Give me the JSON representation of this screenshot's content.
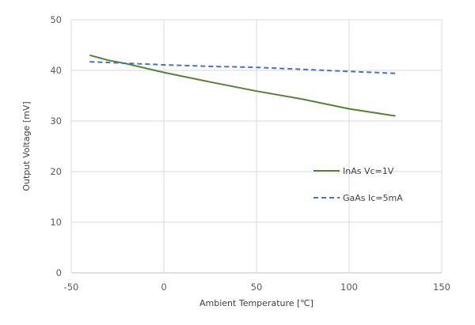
{
  "chart_data": {
    "type": "line",
    "title": "",
    "xlabel": "Ambient Temperature [℃]",
    "ylabel": "Output Voltage [mV]",
    "xlim": [
      -50,
      150
    ],
    "ylim": [
      0,
      50
    ],
    "xticks": [
      -50,
      0,
      50,
      100,
      150
    ],
    "yticks": [
      0,
      10,
      20,
      30,
      40,
      50
    ],
    "xtick_labels": [
      "-50",
      "0",
      "50",
      "100",
      "150"
    ],
    "ytick_labels": [
      "0",
      "10",
      "20",
      "30",
      "40",
      "50"
    ],
    "grid": true,
    "legend_position": "right",
    "series": [
      {
        "name": "InAs Vc=1V",
        "color": "#548235",
        "style": "solid",
        "x": [
          -40,
          -30,
          -20,
          0,
          25,
          50,
          75,
          100,
          125
        ],
        "y": [
          43.0,
          42.0,
          41.3,
          39.6,
          37.7,
          35.9,
          34.3,
          32.4,
          31.0
        ]
      },
      {
        "name": "GaAs Ic=5mA",
        "color": "#4472C4",
        "style": "dashed",
        "x": [
          -40,
          -20,
          0,
          25,
          50,
          75,
          100,
          125
        ],
        "y": [
          41.7,
          41.4,
          41.1,
          40.8,
          40.6,
          40.2,
          39.8,
          39.4
        ]
      }
    ]
  }
}
